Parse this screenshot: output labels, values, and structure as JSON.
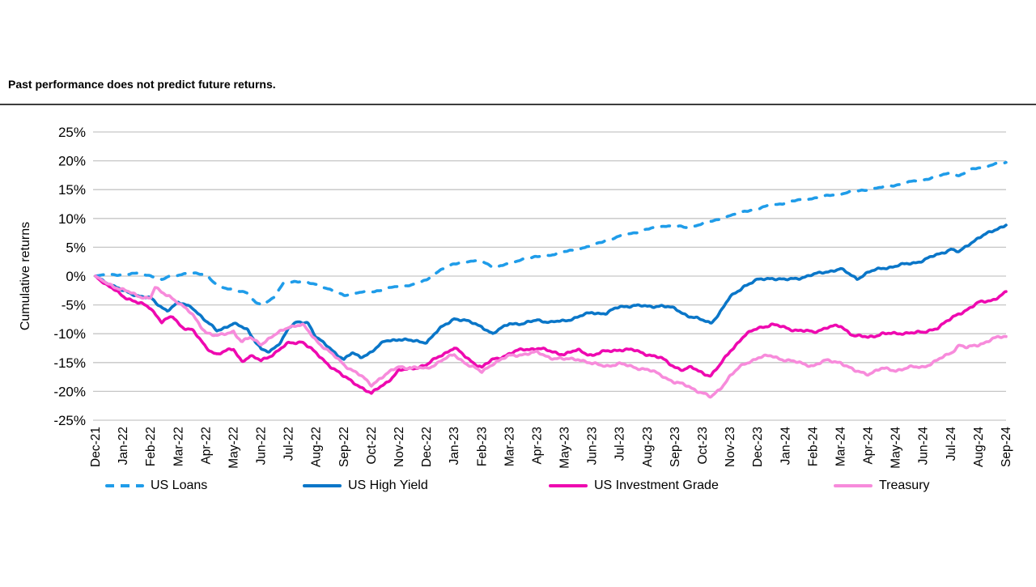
{
  "page": {
    "disclaimer": "Past performance does not predict future returns."
  },
  "chart_data": {
    "type": "line",
    "title": "",
    "ylabel": "Cumulative returns",
    "xlabel": "",
    "ylim": [
      -25,
      25
    ],
    "grid": true,
    "legend_position": "bottom",
    "tick_suffix": "%",
    "y_ticks": [
      25,
      20,
      15,
      10,
      5,
      0,
      -5,
      -10,
      -15,
      -20,
      -25
    ],
    "x_labels": [
      "Dec-21",
      "Jan-22",
      "Feb-22",
      "Mar-22",
      "Apr-22",
      "May-22",
      "Jun-22",
      "Jul-22",
      "Aug-22",
      "Sep-22",
      "Oct-22",
      "Nov-22",
      "Dec-22",
      "Jan-23",
      "Feb-23",
      "Mar-23",
      "Apr-23",
      "May-23",
      "Jun-23",
      "Jul-23",
      "Aug-23",
      "Sep-23",
      "Oct-23",
      "Nov-23",
      "Dec-23",
      "Jan-24",
      "Feb-24",
      "Mar-24",
      "Apr-24",
      "May-24",
      "Jun-24",
      "Jul-24",
      "Aug-24",
      "Sep-24"
    ],
    "colors": {
      "gridline": "#c6c6c6",
      "axis_text": "#000000"
    },
    "series": [
      {
        "name": "US Loans",
        "color": "#1f9ce9",
        "style": "dashed",
        "points": [
          [
            0,
            0
          ],
          [
            0.5,
            0.35
          ],
          [
            1,
            0.2
          ],
          [
            1.5,
            0.45
          ],
          [
            2,
            0.1
          ],
          [
            2.4,
            -0.7
          ],
          [
            2.7,
            0.1
          ],
          [
            3,
            0.2
          ],
          [
            3.5,
            0.5
          ],
          [
            4,
            0.35
          ],
          [
            4.3,
            -1.2
          ],
          [
            4.6,
            -2.0
          ],
          [
            5,
            -2.3
          ],
          [
            5.5,
            -3.0
          ],
          [
            5.8,
            -4.6
          ],
          [
            6.1,
            -4.9
          ],
          [
            6.5,
            -3.6
          ],
          [
            6.8,
            -1.3
          ],
          [
            7.2,
            -0.9
          ],
          [
            7.6,
            -1.1
          ],
          [
            8,
            -1.4
          ],
          [
            8.5,
            -2.4
          ],
          [
            9,
            -3.3
          ],
          [
            9.5,
            -2.9
          ],
          [
            10,
            -2.7
          ],
          [
            10.5,
            -2.3
          ],
          [
            11,
            -1.7
          ],
          [
            11.5,
            -1.5
          ],
          [
            12,
            -0.7
          ],
          [
            12.5,
            1.1
          ],
          [
            13,
            2.1
          ],
          [
            13.5,
            2.6
          ],
          [
            14,
            2.5
          ],
          [
            14.5,
            1.5
          ],
          [
            15,
            2.2
          ],
          [
            15.5,
            3.0
          ],
          [
            16,
            3.3
          ],
          [
            16.5,
            3.7
          ],
          [
            17,
            4.2
          ],
          [
            17.5,
            4.7
          ],
          [
            18,
            5.3
          ],
          [
            18.5,
            6.2
          ],
          [
            19,
            6.9
          ],
          [
            19.5,
            7.5
          ],
          [
            20,
            8.1
          ],
          [
            20.5,
            8.7
          ],
          [
            21,
            8.7
          ],
          [
            21.4,
            8.4
          ],
          [
            22,
            9.1
          ],
          [
            22.5,
            9.7
          ],
          [
            23,
            10.5
          ],
          [
            23.5,
            11.2
          ],
          [
            24,
            11.7
          ],
          [
            24.5,
            12.3
          ],
          [
            25,
            12.7
          ],
          [
            25.5,
            13.2
          ],
          [
            26,
            13.5
          ],
          [
            26.5,
            13.9
          ],
          [
            27,
            14.3
          ],
          [
            27.5,
            14.7
          ],
          [
            28,
            15.0
          ],
          [
            28.5,
            15.4
          ],
          [
            29,
            15.8
          ],
          [
            29.5,
            16.3
          ],
          [
            30,
            16.7
          ],
          [
            30.5,
            17.3
          ],
          [
            31,
            17.9
          ],
          [
            31.3,
            17.4
          ],
          [
            31.7,
            18.4
          ],
          [
            32,
            18.8
          ],
          [
            32.5,
            19.3
          ],
          [
            33,
            19.7
          ]
        ]
      },
      {
        "name": "US High Yield",
        "color": "#0a76c8",
        "style": "solid",
        "points": [
          [
            0,
            0
          ],
          [
            0.4,
            -1.1
          ],
          [
            1,
            -2.6
          ],
          [
            1.5,
            -3.3
          ],
          [
            2,
            -3.9
          ],
          [
            2.3,
            -5.1
          ],
          [
            2.6,
            -5.9
          ],
          [
            3,
            -4.7
          ],
          [
            3.5,
            -5.3
          ],
          [
            4,
            -7.9
          ],
          [
            4.4,
            -9.4
          ],
          [
            5,
            -8.3
          ],
          [
            5.5,
            -9.2
          ],
          [
            6,
            -12.7
          ],
          [
            6.3,
            -13.3
          ],
          [
            6.7,
            -11.4
          ],
          [
            7,
            -9.0
          ],
          [
            7.3,
            -8.1
          ],
          [
            7.7,
            -8.0
          ],
          [
            8,
            -10.6
          ],
          [
            8.5,
            -12.6
          ],
          [
            9,
            -14.4
          ],
          [
            9.3,
            -13.4
          ],
          [
            9.6,
            -14.1
          ],
          [
            10,
            -13.1
          ],
          [
            10.5,
            -11.3
          ],
          [
            11,
            -10.9
          ],
          [
            11.5,
            -11.3
          ],
          [
            12,
            -11.4
          ],
          [
            12.5,
            -9.1
          ],
          [
            13,
            -7.3
          ],
          [
            13.5,
            -7.9
          ],
          [
            14,
            -8.7
          ],
          [
            14.4,
            -10.1
          ],
          [
            15,
            -8.1
          ],
          [
            15.5,
            -8.4
          ],
          [
            16,
            -7.5
          ],
          [
            16.5,
            -8.1
          ],
          [
            17,
            -7.7
          ],
          [
            17.5,
            -7.1
          ],
          [
            18,
            -6.3
          ],
          [
            18.5,
            -6.5
          ],
          [
            19,
            -5.3
          ],
          [
            19.5,
            -5.1
          ],
          [
            20,
            -5.3
          ],
          [
            20.5,
            -5.1
          ],
          [
            21,
            -5.7
          ],
          [
            21.5,
            -6.9
          ],
          [
            22,
            -7.7
          ],
          [
            22.3,
            -8.1
          ],
          [
            22.6,
            -6.5
          ],
          [
            23,
            -3.7
          ],
          [
            23.5,
            -1.7
          ],
          [
            24,
            -0.7
          ],
          [
            24.5,
            -0.3
          ],
          [
            25,
            -0.7
          ],
          [
            25.5,
            -0.3
          ],
          [
            26,
            0.2
          ],
          [
            26.5,
            0.8
          ],
          [
            27,
            1.2
          ],
          [
            27.3,
            0.4
          ],
          [
            27.6,
            -0.4
          ],
          [
            28,
            0.6
          ],
          [
            28.5,
            1.4
          ],
          [
            29,
            1.7
          ],
          [
            29.5,
            2.2
          ],
          [
            30,
            2.7
          ],
          [
            30.5,
            3.7
          ],
          [
            31,
            4.7
          ],
          [
            31.3,
            4.1
          ],
          [
            31.7,
            5.7
          ],
          [
            32,
            6.7
          ],
          [
            32.5,
            7.7
          ],
          [
            33,
            9.0
          ]
        ]
      },
      {
        "name": "US Investment Grade",
        "color": "#ee09b0",
        "style": "solid",
        "points": [
          [
            0,
            0
          ],
          [
            0.4,
            -1.6
          ],
          [
            1,
            -3.4
          ],
          [
            1.5,
            -4.6
          ],
          [
            2,
            -5.5
          ],
          [
            2.4,
            -7.9
          ],
          [
            2.8,
            -7.1
          ],
          [
            3.1,
            -8.7
          ],
          [
            3.5,
            -9.3
          ],
          [
            4,
            -12.4
          ],
          [
            4.4,
            -13.5
          ],
          [
            5,
            -12.7
          ],
          [
            5.3,
            -14.7
          ],
          [
            5.6,
            -13.9
          ],
          [
            6,
            -14.7
          ],
          [
            6.5,
            -13.3
          ],
          [
            7,
            -11.7
          ],
          [
            7.5,
            -11.3
          ],
          [
            8,
            -13.5
          ],
          [
            8.5,
            -15.5
          ],
          [
            9,
            -17.5
          ],
          [
            9.4,
            -18.5
          ],
          [
            9.7,
            -19.5
          ],
          [
            10,
            -20.5
          ],
          [
            10.3,
            -19.2
          ],
          [
            10.6,
            -18.2
          ],
          [
            11,
            -16.5
          ],
          [
            11.5,
            -15.9
          ],
          [
            12,
            -15.5
          ],
          [
            12.5,
            -13.7
          ],
          [
            13,
            -12.5
          ],
          [
            13.5,
            -14.3
          ],
          [
            14,
            -15.9
          ],
          [
            14.4,
            -14.5
          ],
          [
            15,
            -13.5
          ],
          [
            15.5,
            -12.7
          ],
          [
            16,
            -12.5
          ],
          [
            16.5,
            -13.1
          ],
          [
            17,
            -13.5
          ],
          [
            17.5,
            -12.9
          ],
          [
            18,
            -13.7
          ],
          [
            18.5,
            -13.1
          ],
          [
            19,
            -12.7
          ],
          [
            19.5,
            -12.9
          ],
          [
            20,
            -13.5
          ],
          [
            20.5,
            -14.3
          ],
          [
            21,
            -15.7
          ],
          [
            21.3,
            -16.3
          ],
          [
            21.6,
            -15.9
          ],
          [
            22,
            -16.7
          ],
          [
            22.3,
            -17.3
          ],
          [
            22.6,
            -15.7
          ],
          [
            23,
            -12.9
          ],
          [
            23.5,
            -10.5
          ],
          [
            24,
            -8.9
          ],
          [
            24.5,
            -8.5
          ],
          [
            25,
            -8.9
          ],
          [
            25.5,
            -9.5
          ],
          [
            26,
            -9.7
          ],
          [
            26.5,
            -8.9
          ],
          [
            27,
            -8.7
          ],
          [
            27.5,
            -10.3
          ],
          [
            28,
            -10.7
          ],
          [
            28.5,
            -9.9
          ],
          [
            29,
            -10.1
          ],
          [
            29.5,
            -9.7
          ],
          [
            30,
            -9.9
          ],
          [
            30.5,
            -8.9
          ],
          [
            31,
            -7.5
          ],
          [
            31.3,
            -6.5
          ],
          [
            31.6,
            -5.7
          ],
          [
            32,
            -4.7
          ],
          [
            32.5,
            -4.1
          ],
          [
            33,
            -2.9
          ]
        ]
      },
      {
        "name": "Treasury",
        "color": "#f78bdb",
        "style": "solid",
        "points": [
          [
            0,
            0
          ],
          [
            0.4,
            -1.3
          ],
          [
            1,
            -2.3
          ],
          [
            1.5,
            -3.5
          ],
          [
            2,
            -3.7
          ],
          [
            2.15,
            -1.9
          ],
          [
            2.4,
            -3.0
          ],
          [
            2.7,
            -3.5
          ],
          [
            3,
            -4.5
          ],
          [
            3.5,
            -6.7
          ],
          [
            4,
            -9.7
          ],
          [
            4.4,
            -10.5
          ],
          [
            5,
            -9.5
          ],
          [
            5.3,
            -11.5
          ],
          [
            5.6,
            -10.7
          ],
          [
            6,
            -11.7
          ],
          [
            6.5,
            -10.3
          ],
          [
            7,
            -8.7
          ],
          [
            7.5,
            -8.5
          ],
          [
            8,
            -11.1
          ],
          [
            8.5,
            -13.3
          ],
          [
            9,
            -15.3
          ],
          [
            9.5,
            -16.9
          ],
          [
            10,
            -18.9
          ],
          [
            10.3,
            -17.7
          ],
          [
            10.6,
            -16.9
          ],
          [
            11,
            -15.7
          ],
          [
            11.5,
            -15.9
          ],
          [
            12,
            -16.1
          ],
          [
            12.5,
            -14.7
          ],
          [
            13,
            -13.7
          ],
          [
            13.5,
            -15.3
          ],
          [
            14,
            -16.7
          ],
          [
            14.4,
            -15.1
          ],
          [
            15,
            -13.9
          ],
          [
            15.5,
            -13.5
          ],
          [
            16,
            -13.3
          ],
          [
            16.5,
            -14.1
          ],
          [
            17,
            -14.5
          ],
          [
            17.5,
            -14.3
          ],
          [
            18,
            -15.3
          ],
          [
            18.5,
            -15.5
          ],
          [
            19,
            -15.3
          ],
          [
            19.5,
            -15.7
          ],
          [
            20,
            -16.3
          ],
          [
            20.5,
            -17.1
          ],
          [
            21,
            -18.5
          ],
          [
            21.5,
            -19.1
          ],
          [
            22,
            -20.3
          ],
          [
            22.3,
            -21.1
          ],
          [
            22.6,
            -19.7
          ],
          [
            23,
            -17.3
          ],
          [
            23.5,
            -15.3
          ],
          [
            24,
            -14.1
          ],
          [
            24.5,
            -13.9
          ],
          [
            25,
            -14.5
          ],
          [
            25.5,
            -15.1
          ],
          [
            26,
            -15.5
          ],
          [
            26.5,
            -14.7
          ],
          [
            27,
            -14.9
          ],
          [
            27.5,
            -16.5
          ],
          [
            28,
            -16.9
          ],
          [
            28.5,
            -16.1
          ],
          [
            29,
            -16.3
          ],
          [
            29.5,
            -15.9
          ],
          [
            30,
            -15.7
          ],
          [
            30.5,
            -14.7
          ],
          [
            31,
            -13.3
          ],
          [
            31.3,
            -11.9
          ],
          [
            31.6,
            -12.5
          ],
          [
            32,
            -11.9
          ],
          [
            32.5,
            -10.9
          ],
          [
            33,
            -10.5
          ]
        ]
      }
    ]
  }
}
